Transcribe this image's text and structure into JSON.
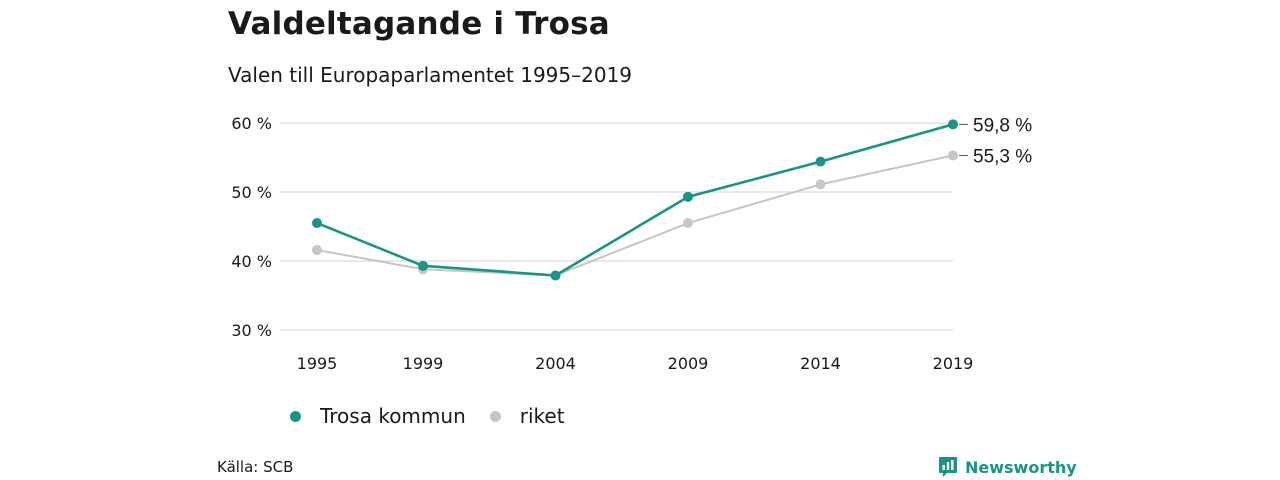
{
  "header": {
    "title": "Valdeltagande i Trosa",
    "subtitle": "Valen till Europaparlamentet 1995–2019"
  },
  "chart_data": {
    "type": "line",
    "title": "Valdeltagande i Trosa",
    "subtitle": "Valen till Europaparlamentet 1995–2019",
    "x": [
      1995,
      1999,
      2004,
      2009,
      2014,
      2019
    ],
    "x_tick_labels": [
      "1995",
      "1999",
      "2004",
      "2009",
      "2014",
      "2019"
    ],
    "y_ticks": [
      30,
      40,
      50,
      60
    ],
    "y_tick_labels": [
      "30 %",
      "40 %",
      "50 %",
      "60 %"
    ],
    "ylim": [
      30,
      60
    ],
    "grid": "horizontal",
    "legend_position": "bottom-left",
    "series": [
      {
        "name": "Trosa kommun",
        "color": "#1a9484",
        "values": [
          45.5,
          39.3,
          37.9,
          49.3,
          54.4,
          59.8
        ],
        "end_label": "59,8 %"
      },
      {
        "name": "riket",
        "color": "#c6c6c6",
        "values": [
          41.6,
          38.8,
          37.9,
          45.5,
          51.1,
          55.3
        ],
        "end_label": "55,3 %"
      }
    ]
  },
  "legend": {
    "items": [
      {
        "label": "Trosa kommun",
        "color": "#1a9484"
      },
      {
        "label": "riket",
        "color": "#c6c6c6"
      }
    ]
  },
  "footer": {
    "source": "Källa: SCB",
    "brand": "Newsworthy",
    "brand_color": "#1a9484",
    "brand_icon": "bar-chart-speech-bubble-icon"
  }
}
